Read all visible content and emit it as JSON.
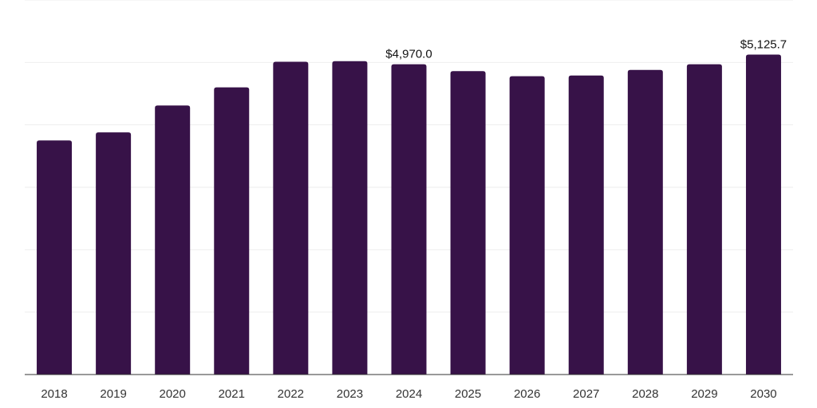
{
  "chart_data": {
    "type": "bar",
    "title": "",
    "xlabel": "",
    "ylabel": "",
    "categories": [
      "2018",
      "2019",
      "2020",
      "2021",
      "2022",
      "2023",
      "2024",
      "2025",
      "2026",
      "2027",
      "2028",
      "2029",
      "2030"
    ],
    "values": [
      3750,
      3880,
      4310,
      4600,
      5010,
      5020,
      4970,
      4860,
      4780,
      4790,
      4880,
      4970,
      5125.7
    ],
    "data_labels": [
      {
        "index": 6,
        "text": "$4,970.0"
      },
      {
        "index": 12,
        "text": "$5,125.7"
      }
    ],
    "ylim": [
      0,
      6000
    ],
    "grid": true,
    "gridline_count": 6,
    "legend": "none",
    "bar_color": "#371248"
  }
}
